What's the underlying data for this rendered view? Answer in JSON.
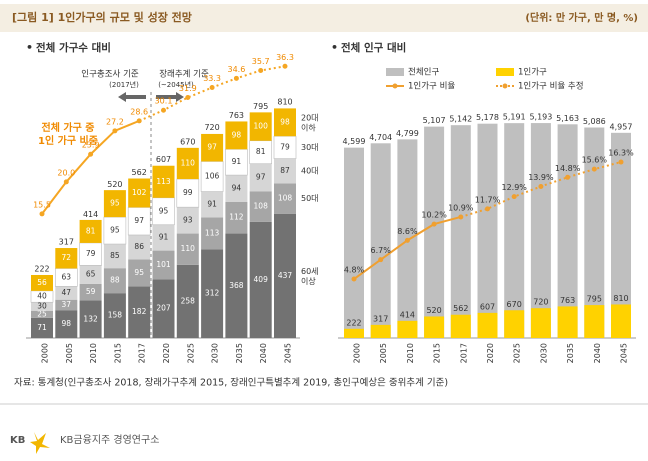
{
  "header": {
    "title": "[그림 1] 1인가구의 규모 및 성장 전망",
    "unit": "(단위: 만 가구, 만 명, %)"
  },
  "chart_data": [
    {
      "type": "stacked_bar",
      "title": "전체 가구수 대비",
      "categories": [
        "2000",
        "2005",
        "2010",
        "2015",
        "2017",
        "2020",
        "2025",
        "2030",
        "2035",
        "2040",
        "2045"
      ],
      "series": [
        {
          "name": "60세 이상",
          "color": "#727272",
          "values": [
            71,
            98,
            132,
            158,
            182,
            207,
            258,
            312,
            368,
            409,
            437
          ]
        },
        {
          "name": "50대",
          "color": "#a6a6a6",
          "values": [
            25,
            37,
            59,
            88,
            95,
            101,
            110,
            113,
            112,
            108,
            108
          ]
        },
        {
          "name": "40대",
          "color": "#d6d6d6",
          "values": [
            30,
            47,
            65,
            85,
            86,
            91,
            93,
            91,
            94,
            97,
            87
          ]
        },
        {
          "name": "30대",
          "color": "#ffffff",
          "values": [
            40,
            63,
            79,
            95,
            97,
            95,
            99,
            106,
            91,
            81,
            79
          ]
        },
        {
          "name": "20대 이하",
          "color": "#f2b600",
          "values": [
            56,
            72,
            81,
            95,
            102,
            113,
            110,
            97,
            98,
            100,
            98
          ]
        }
      ],
      "totals": [
        222,
        317,
        414,
        520,
        562,
        607,
        670,
        720,
        763,
        795,
        810
      ],
      "ylim": [
        0,
        1050
      ],
      "line": {
        "color": "#f5a623",
        "axis": "y2",
        "estimate_from": "2017",
        "values": [
          15.5,
          20.0,
          23.9,
          27.2,
          28.6,
          30.1,
          31.9,
          33.3,
          34.6,
          35.7,
          36.3
        ],
        "value_labels": [
          "15.5",
          "20.0",
          "23.9",
          "27.2",
          "28.6",
          "30.1",
          "31.9",
          "33.3",
          "34.6",
          "35.7",
          "36.3"
        ]
      },
      "y2lim": [
        -2,
        40
      ],
      "line_annotation": [
        "전체 가구 중",
        "1인 가구 비중"
      ],
      "period_notes": [
        {
          "label": "인구총조사 기준",
          "sub": "(2017년)"
        },
        {
          "label": "장래추계 기준",
          "sub": "(~2045년)"
        }
      ]
    },
    {
      "type": "bar_line",
      "title": "전체 인구 대비",
      "categories": [
        "2000",
        "2005",
        "2010",
        "2015",
        "2017",
        "2020",
        "2025",
        "2030",
        "2035",
        "2040",
        "2045"
      ],
      "series": [
        {
          "name": "전체인구",
          "color": "#bfbfbf",
          "values": [
            4599,
            4704,
            4799,
            5107,
            5142,
            5178,
            5191,
            5193,
            5163,
            5086,
            4957
          ],
          "value_labels": [
            "4,599",
            "4,704",
            "4,799",
            "5,107",
            "5,142",
            "5,178",
            "5,191",
            "5,193",
            "5,163",
            "5,086",
            "4,957"
          ]
        },
        {
          "name": "1인가구",
          "color": "#ffd200",
          "values": [
            222,
            317,
            414,
            520,
            562,
            607,
            670,
            720,
            763,
            795,
            810
          ]
        },
        {
          "name": "1인가구 비율",
          "type": "line",
          "axis": "y2",
          "color": "#f0a030",
          "estimate_name": "1인가구 비율 추정",
          "estimate_from": "2017",
          "values": [
            4.8,
            6.7,
            8.6,
            10.2,
            10.9,
            11.7,
            12.9,
            13.9,
            14.8,
            15.6,
            16.3
          ],
          "value_labels": [
            "4.8%",
            "6.7%",
            "8.6%",
            "10.2%",
            "10.9%",
            "11.7%",
            "12.9%",
            "13.9%",
            "14.8%",
            "15.6%",
            "16.3%"
          ]
        }
      ],
      "ylim": [
        0,
        7200
      ],
      "y2lim": [
        -1,
        28.3
      ]
    }
  ],
  "source": "자료: 통계청(인구총조사 2018, 장래가구추계 2015, 장래인구특별추계 2019, 총인구예상은 중위추계 기준)",
  "footer": {
    "logo": "KB",
    "org": "KB금융지주 경영연구소"
  }
}
